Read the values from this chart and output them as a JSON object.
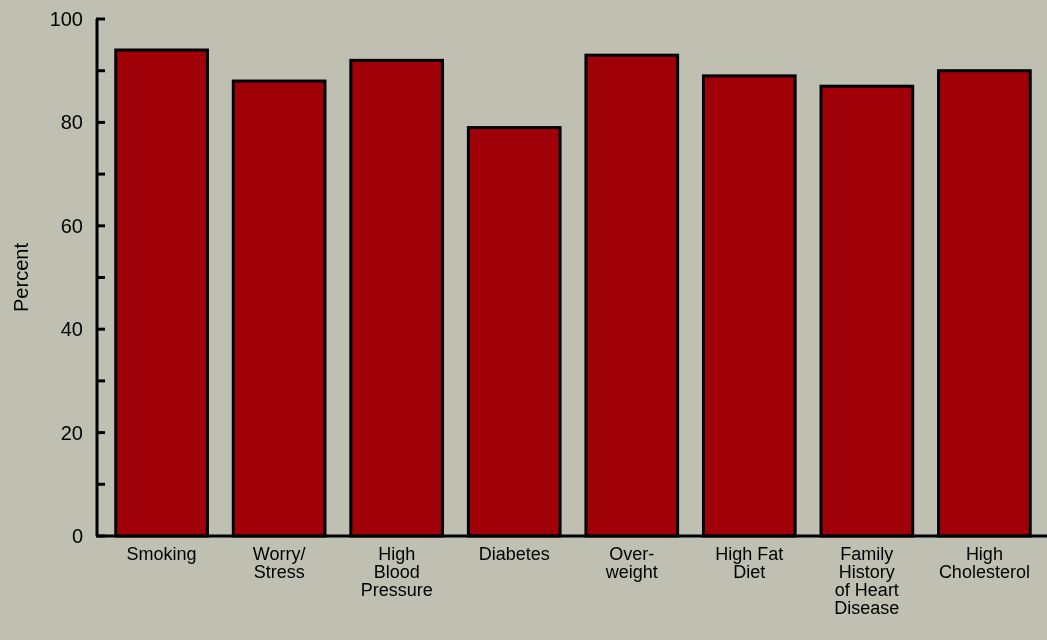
{
  "chart_data": {
    "type": "bar",
    "ylabel": "Percent",
    "categories": [
      "Smoking",
      "Worry/\nStress",
      "High\nBlood\nPressure",
      "Diabetes",
      "Over-\nweight",
      "High Fat\nDiet",
      "Family\nHistory\nof Heart\nDisease",
      "High\nCholesterol"
    ],
    "values": [
      94,
      88,
      92,
      79,
      93,
      89,
      87,
      90
    ],
    "color": "#a00008",
    "ylim": [
      0,
      100
    ],
    "yticks": [
      0,
      {
        "value": 10,
        "label": null
      },
      20,
      {
        "value": 30,
        "label": null
      },
      40,
      {
        "value": 50,
        "label": null
      },
      60,
      {
        "value": 70,
        "label": null
      },
      80,
      {
        "value": 90,
        "label": null
      },
      100
    ],
    "grid": false
  }
}
